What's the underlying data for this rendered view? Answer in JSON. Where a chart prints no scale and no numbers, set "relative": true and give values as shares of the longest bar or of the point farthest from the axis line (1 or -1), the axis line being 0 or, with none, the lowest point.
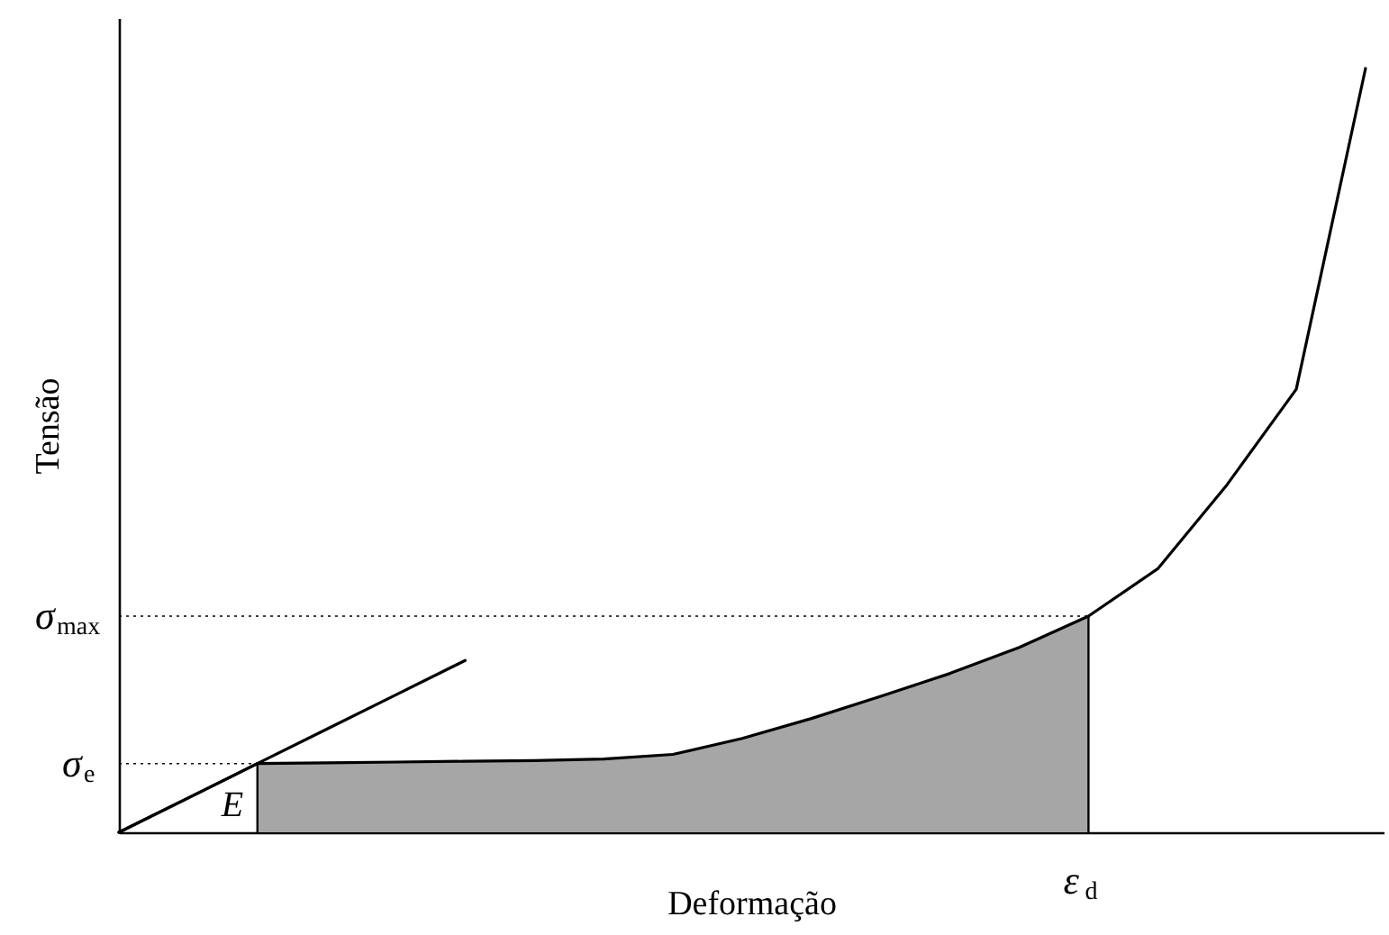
{
  "chart_data": {
    "type": "line",
    "relative": true,
    "xlabel": "Deformação",
    "ylabel": "Tensão",
    "categories": [
      null,
      null,
      null,
      null,
      null,
      null,
      null,
      null,
      null,
      null,
      null,
      null,
      null,
      null,
      null,
      null,
      null,
      null,
      null
    ],
    "series": [
      {
        "type": "area",
        "color": "#a6a6a6",
        "values": [
          null,
          null,
          0.09,
          0.091,
          0.092,
          0.093,
          0.094,
          0.096,
          0.102,
          0.123,
          0.149,
          0.178,
          0.208,
          0.242,
          0.283,
          null,
          null,
          null,
          null
        ]
      },
      {
        "color": "#000000",
        "values": [
          0,
          0.045,
          0.09,
          0.091,
          0.092,
          0.093,
          0.094,
          0.096,
          0.102,
          0.123,
          0.149,
          0.178,
          0.208,
          0.242,
          0.283,
          0.345,
          0.455,
          0.58,
          1
        ]
      },
      {
        "color": "#000000",
        "values": [
          0,
          0.045,
          0.09,
          0.135,
          0.18,
          0.225,
          null,
          null,
          null,
          null,
          null,
          null,
          null,
          null,
          null,
          null,
          null,
          null,
          null
        ]
      }
    ],
    "ref_lines": [
      {
        "axis": "y",
        "value": 0.09,
        "label": "σ$_{e}$",
        "line_style": "dotted"
      },
      {
        "axis": "y",
        "value": 0.283,
        "label": "σ$_{max}$",
        "line_style": "dotted"
      }
    ],
    "annotations": [
      "E",
      "ε$_{d}$"
    ]
  }
}
